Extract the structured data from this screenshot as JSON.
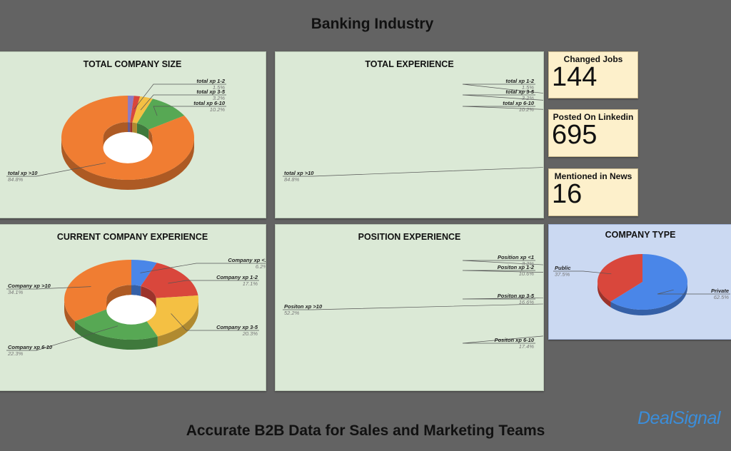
{
  "header": {
    "title": "Banking Industry"
  },
  "footer": {
    "tagline": "Accurate B2B Data for Sales and Marketing Teams",
    "logo": "DealSignal"
  },
  "stats": [
    {
      "label": "Changed Jobs",
      "value": "144"
    },
    {
      "label": "Posted On Linkedin",
      "value": "695"
    },
    {
      "label": "Mentioned in News",
      "value": "16"
    }
  ],
  "chart_data": [
    {
      "type": "pie",
      "title": "TOTAL COMPANY SIZE",
      "donut": true,
      "slices": [
        {
          "label": "",
          "value": 1.5,
          "display": "",
          "color": "#8e7cc3"
        },
        {
          "label": "total xp 1-2",
          "value": 1.5,
          "display": "1.5%",
          "color": "#d9473c"
        },
        {
          "label": "total xp 3-5",
          "value": 3.2,
          "display": "3.2%",
          "color": "#f4c043"
        },
        {
          "label": "total xp 6-10",
          "value": 10.2,
          "display": "10.2%",
          "color": "#57a854"
        },
        {
          "label": "total xp >10",
          "value": 84.8,
          "display": "84.8%",
          "color": "#f07d32"
        }
      ]
    },
    {
      "type": "pie",
      "title": "TOTAL EXPERIENCE",
      "donut": true,
      "slices": [
        {
          "label": "",
          "value": 1.5,
          "display": "",
          "color": "#8e7cc3"
        },
        {
          "label": "total xp 1-2",
          "value": 1.5,
          "display": "1.5%",
          "color": "#d9473c"
        },
        {
          "label": "total xp 3-5",
          "value": 3.2,
          "display": "3.2%",
          "color": "#f4c043"
        },
        {
          "label": "total xp 6-10",
          "value": 10.2,
          "display": "10.2%",
          "color": "#57a854"
        },
        {
          "label": "total xp >10",
          "value": 84.8,
          "display": "84.8%",
          "color": "#f07d32"
        }
      ]
    },
    {
      "type": "pie",
      "title": "CURRENT COMPANY EXPERIENCE",
      "donut": true,
      "slices": [
        {
          "label": "Company xp <1",
          "value": 6.2,
          "display": "6.2%",
          "color": "#4a86e8"
        },
        {
          "label": "Company xp 1-2",
          "value": 17.1,
          "display": "17.1%",
          "color": "#d9473c"
        },
        {
          "label": "Company xp 3-5",
          "value": 20.3,
          "display": "20.3%",
          "color": "#f4c043"
        },
        {
          "label": "Company xp 6-10",
          "value": 22.3,
          "display": "22.3%",
          "color": "#57a854"
        },
        {
          "label": "Company xp >10",
          "value": 34.1,
          "display": "34.1%",
          "color": "#f07d32"
        }
      ]
    },
    {
      "type": "pie",
      "title": "POSITION EXPERIENCE",
      "donut": true,
      "slices": [
        {
          "label": "Position xp <1",
          "value": 3.2,
          "display": "3.2%",
          "color": "#4a86e8"
        },
        {
          "label": "Positon xp 1-2",
          "value": 10.6,
          "display": "10.6%",
          "color": "#d9473c"
        },
        {
          "label": "Positon xp 3-5",
          "value": 16.6,
          "display": "16.6%",
          "color": "#f4c043"
        },
        {
          "label": "Positon xp 6-10",
          "value": 17.4,
          "display": "17.4%",
          "color": "#57a854"
        },
        {
          "label": "Positon xp >10",
          "value": 52.2,
          "display": "52.2%",
          "color": "#f07d32"
        }
      ]
    },
    {
      "type": "pie",
      "title": "COMPANY TYPE",
      "donut": false,
      "slices": [
        {
          "label": "Private",
          "value": 62.5,
          "display": "62.5%",
          "color": "#4a86e8"
        },
        {
          "label": "Public",
          "value": 37.5,
          "display": "37.5%",
          "color": "#d9473c"
        }
      ]
    }
  ]
}
